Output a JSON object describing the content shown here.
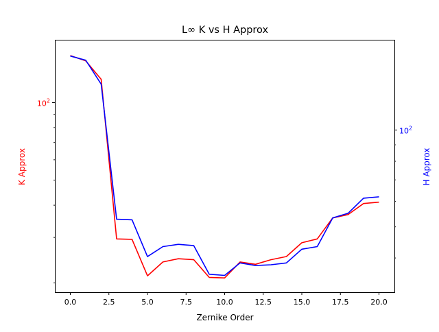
{
  "chart_data": {
    "type": "line",
    "title": "L∞ K vs H Approx",
    "xlabel": "Zernike Order",
    "xlim": [
      -1.0,
      21.0
    ],
    "x_ticks": [
      0.0,
      2.5,
      5.0,
      7.5,
      10.0,
      12.5,
      15.0,
      17.5,
      20.0
    ],
    "x_tick_labels": [
      "0.0",
      "2.5",
      "5.0",
      "7.5",
      "10.0",
      "12.5",
      "15.0",
      "17.5",
      "20.0"
    ],
    "x": [
      0,
      1,
      2,
      3,
      4,
      5,
      6,
      7,
      8,
      9,
      10,
      11,
      12,
      13,
      14,
      15,
      16,
      17,
      18,
      19,
      20
    ],
    "grid": false,
    "axes": [
      {
        "side": "left",
        "label": "K Approx",
        "color": "#ff0000",
        "scale": "log",
        "ylim": [
          18.4,
          175
        ],
        "tick_label": "10",
        "tick_label_exp": "2",
        "tick_value": 100
      },
      {
        "side": "right",
        "label": "H Approx",
        "color": "#0000ff",
        "scale": "log",
        "ylim": [
          31.3,
          191
        ],
        "tick_label": "10",
        "tick_label_exp": "2",
        "tick_value": 100
      }
    ],
    "series": [
      {
        "axis": "left",
        "color": "#ff0000",
        "values": [
          152,
          145,
          123,
          29.6,
          29.5,
          21.3,
          24.1,
          24.8,
          24.6,
          21.0,
          20.9,
          24.1,
          23.6,
          24.6,
          25.3,
          28.6,
          29.6,
          35.7,
          36.8,
          40.6,
          41.1
        ]
      },
      {
        "axis": "right",
        "color": "#0000ff",
        "values": [
          170,
          165,
          139,
          52.8,
          52.6,
          40.4,
          43.4,
          44.1,
          43.7,
          35.6,
          35.3,
          38.6,
          37.9,
          38.1,
          38.6,
          42.6,
          43.4,
          53.3,
          55.1,
          61.4,
          62.0
        ]
      }
    ]
  }
}
